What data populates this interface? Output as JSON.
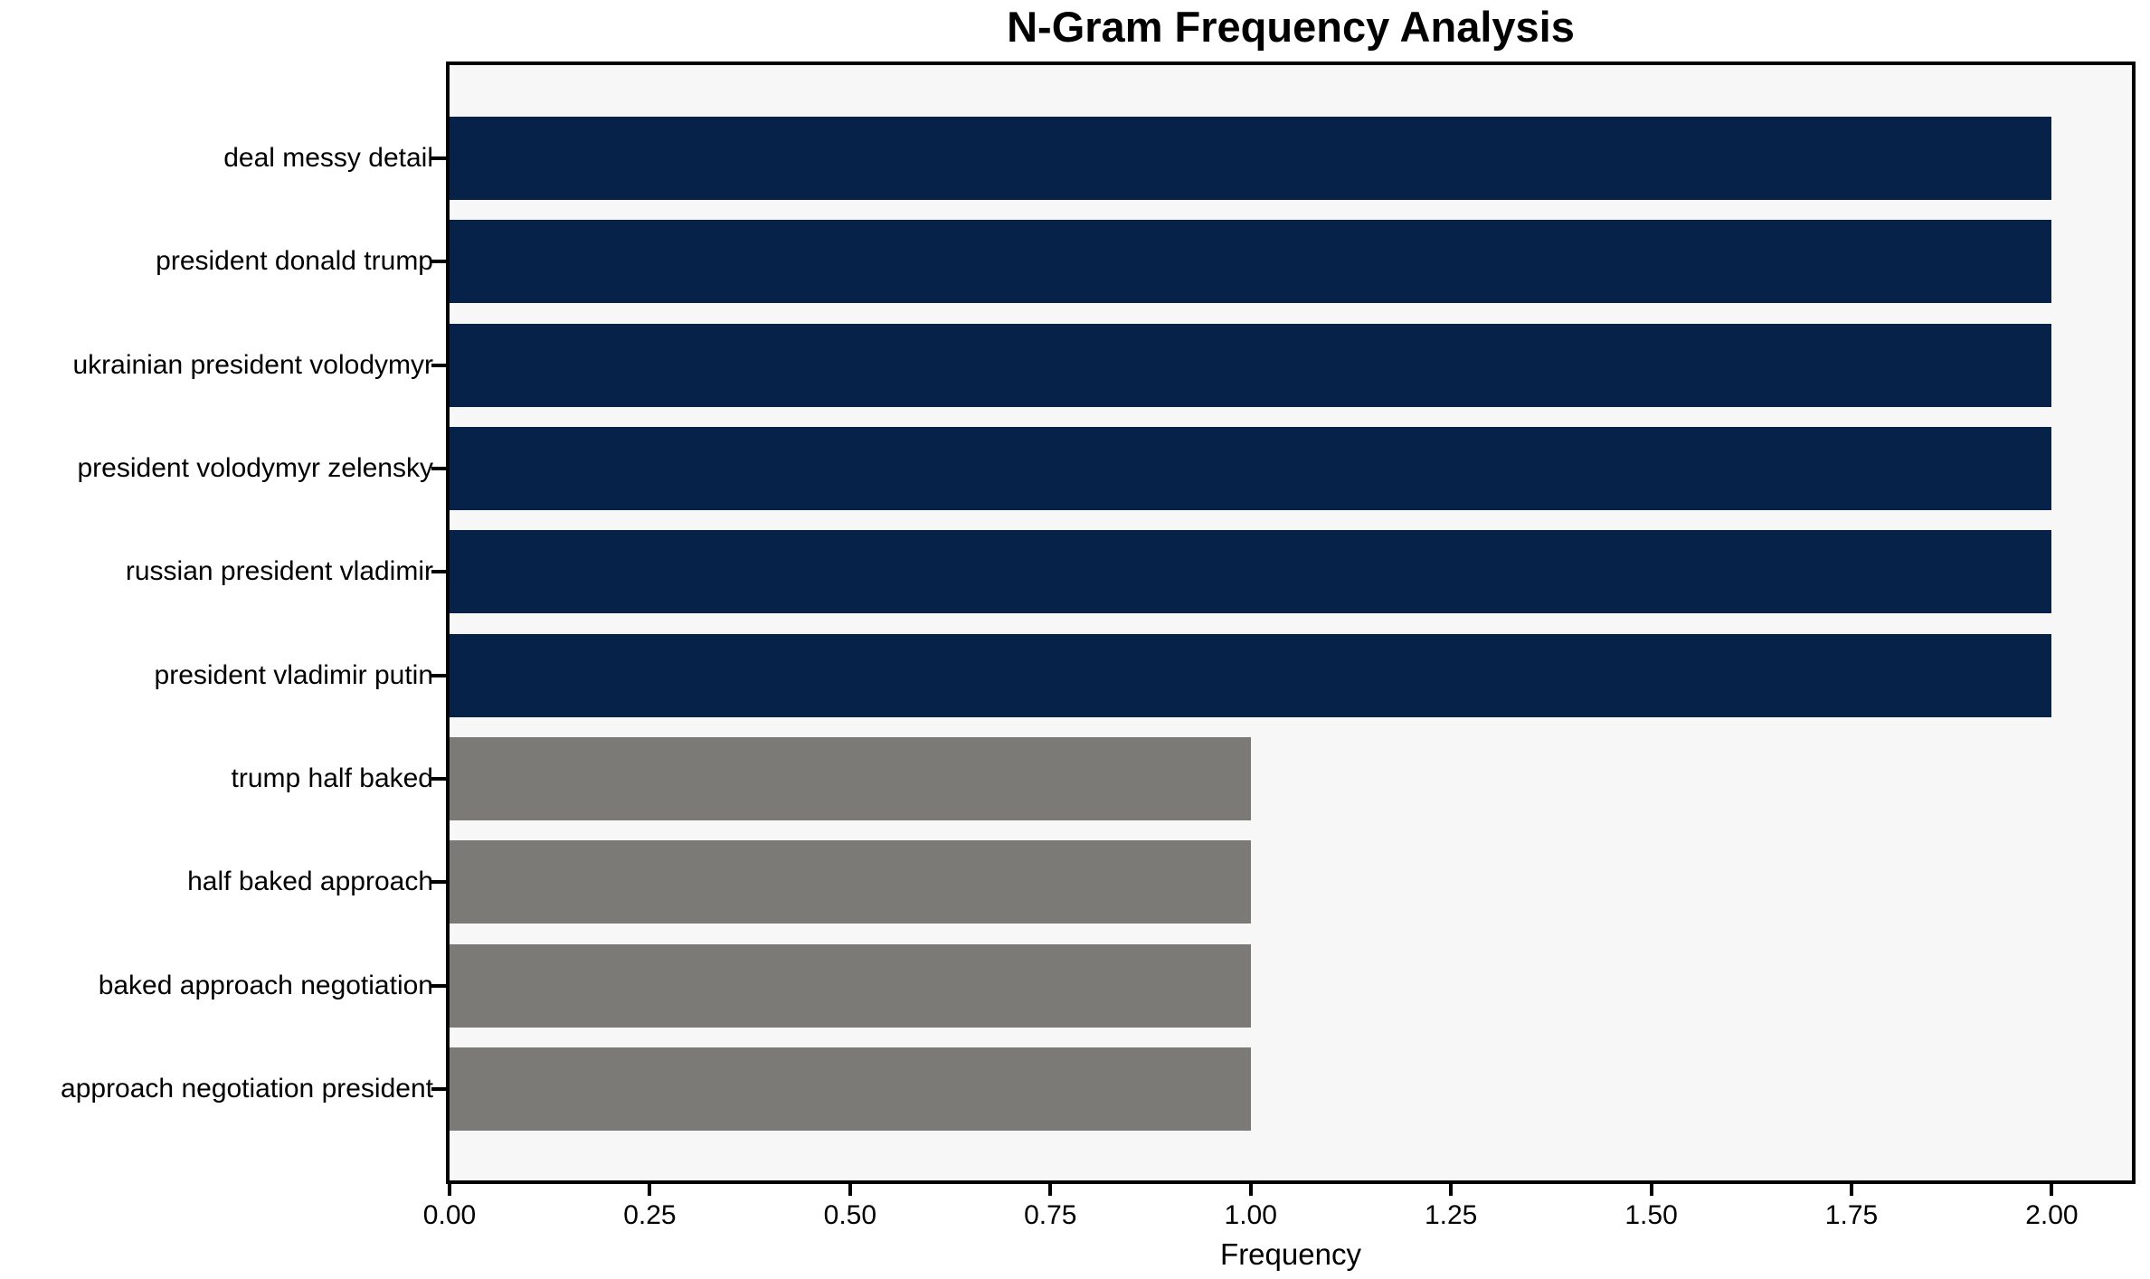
{
  "chart_data": {
    "type": "bar",
    "orientation": "horizontal",
    "title": "N-Gram Frequency Analysis",
    "xlabel": "Frequency",
    "ylabel": "",
    "categories": [
      "deal messy detail",
      "president donald trump",
      "ukrainian president volodymyr",
      "president volodymyr zelensky",
      "russian president vladimir",
      "president vladimir putin",
      "trump half baked",
      "half baked approach",
      "baked approach negotiation",
      "approach negotiation president"
    ],
    "values": [
      2,
      2,
      2,
      2,
      2,
      2,
      1,
      1,
      1,
      1
    ],
    "bar_colors": [
      "#062249",
      "#062249",
      "#062249",
      "#062249",
      "#062249",
      "#062249",
      "#7b7a76",
      "#7b7a76",
      "#7b7a76",
      "#7b7a76"
    ],
    "xtick_labels": [
      "0.00",
      "0.25",
      "0.50",
      "0.75",
      "1.00",
      "1.25",
      "1.50",
      "1.75",
      "2.00"
    ],
    "xtick_values": [
      0,
      0.25,
      0.5,
      0.75,
      1.0,
      1.25,
      1.5,
      1.75,
      2.0
    ],
    "xlim": [
      0,
      2.1
    ],
    "grid": false,
    "legend": null,
    "plot_background": "#f7f7f7",
    "frame_color": "#000000",
    "colors": {
      "high_frequency_bar": "#062249",
      "low_frequency_bar": "#7b7a76"
    }
  }
}
